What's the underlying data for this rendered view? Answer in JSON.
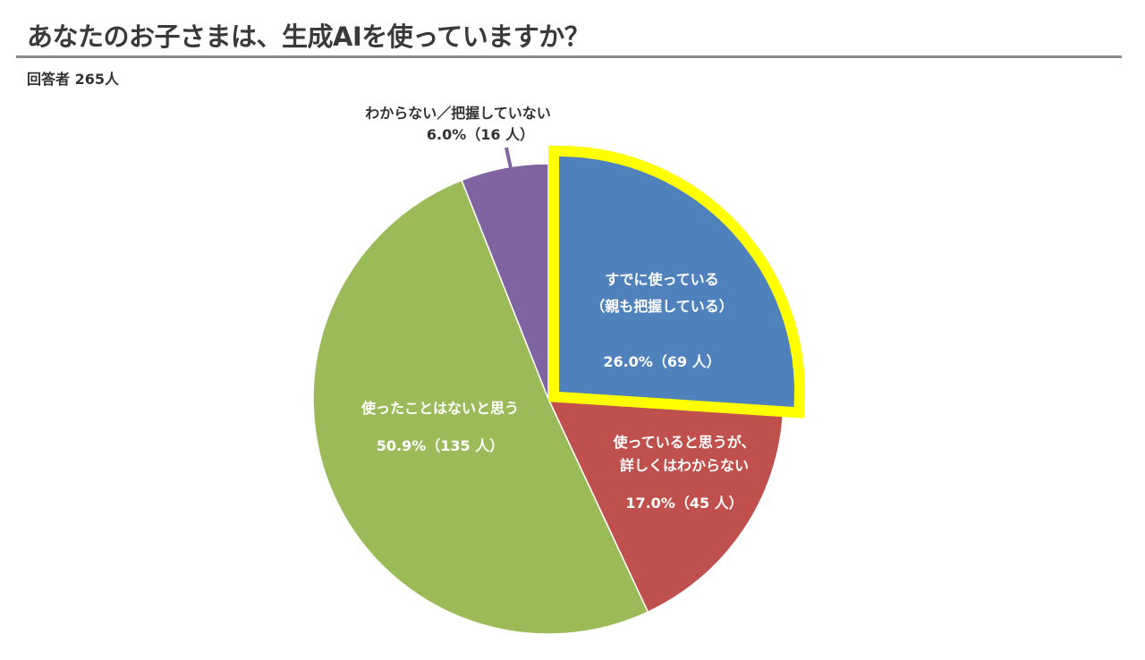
{
  "title": "あなたのお子さまは、生成AIを使っていますか？",
  "subtitle": "回答者 265人",
  "chart_data": {
    "type": "pie",
    "title": "あなたのお子さまは、生成AIを使っていますか？",
    "start_angle": "top, clockwise",
    "highlighted": "すでに使っている（親も把握している）",
    "highlight_color": "#ffff00",
    "slices": [
      {
        "label_lines": [
          "すでに使っている",
          "（親も把握している）"
        ],
        "value_text": "26.0%（69 人）",
        "percent": 26.0,
        "count": 69,
        "color": "#4f81bd"
      },
      {
        "label_lines": [
          "使っていると思うが、",
          "詳しくはわからない"
        ],
        "value_text": "17.0%（45 人）",
        "percent": 17.0,
        "count": 45,
        "color": "#c0504d"
      },
      {
        "label_lines": [
          "使ったことはないと思う"
        ],
        "value_text": "50.9%（135 人）",
        "percent": 50.9,
        "count": 135,
        "color": "#9bbb59"
      },
      {
        "label_lines": [
          "わからない／把握していない"
        ],
        "value_text": "6.0%（16 人）",
        "percent": 6.0,
        "count": 16,
        "color": "#8064a2"
      }
    ]
  }
}
